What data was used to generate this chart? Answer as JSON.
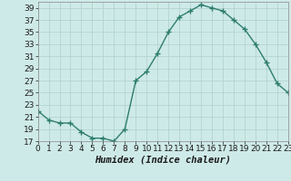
{
  "x": [
    0,
    1,
    2,
    3,
    4,
    5,
    6,
    7,
    8,
    9,
    10,
    11,
    12,
    13,
    14,
    15,
    16,
    17,
    18,
    19,
    20,
    21,
    22,
    23
  ],
  "y": [
    22,
    20.5,
    20,
    20,
    18.5,
    17.5,
    17.5,
    17,
    19,
    27,
    28.5,
    31.5,
    35,
    37.5,
    38.5,
    39.5,
    39,
    38.5,
    37,
    35.5,
    33,
    30,
    26.5,
    25
  ],
  "line_color": "#2e7d6e",
  "bg_color": "#ceeae8",
  "grid_color": "#b2d4d0",
  "xlabel": "Humidex (Indice chaleur)",
  "xlim": [
    0,
    23
  ],
  "ylim": [
    17,
    40
  ],
  "yticks": [
    17,
    19,
    21,
    23,
    25,
    27,
    29,
    31,
    33,
    35,
    37,
    39
  ],
  "xticks": [
    0,
    1,
    2,
    3,
    4,
    5,
    6,
    7,
    8,
    9,
    10,
    11,
    12,
    13,
    14,
    15,
    16,
    17,
    18,
    19,
    20,
    21,
    22,
    23
  ],
  "marker": "+",
  "markersize": 4,
  "linewidth": 1.0,
  "tick_fontsize": 6.5,
  "xlabel_fontsize": 7.5
}
